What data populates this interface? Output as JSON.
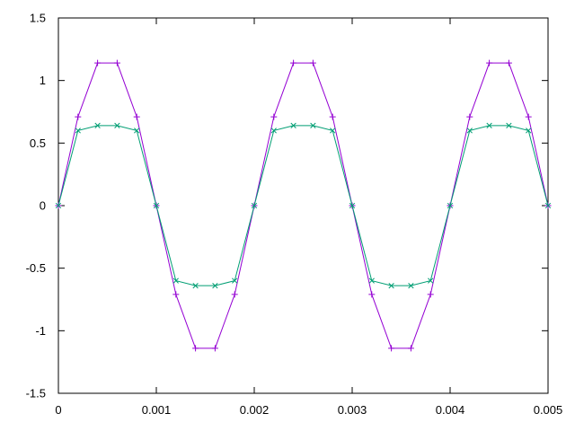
{
  "chart_data": {
    "type": "line",
    "title": "",
    "xlabel": "",
    "ylabel": "",
    "xlim": [
      0,
      0.005
    ],
    "ylim": [
      -1.5,
      1.5
    ],
    "grid": false,
    "legend": "none",
    "x_ticks": [
      "0",
      "0.001",
      "0.002",
      "0.003",
      "0.004",
      "0.005"
    ],
    "y_ticks": [
      "-1.5",
      "-1",
      "-0.5",
      "0",
      "0.5",
      "1",
      "1.5"
    ],
    "x_tick_values": [
      0,
      0.001,
      0.002,
      0.003,
      0.004,
      0.005
    ],
    "y_tick_values": [
      -1.5,
      -1,
      -0.5,
      0,
      0.5,
      1,
      1.5
    ],
    "series": [
      {
        "color": "#9400d3",
        "marker": "plus",
        "x": [
          0,
          0.0002,
          0.0004,
          0.0006,
          0.0008,
          0.001,
          0.0012,
          0.0014,
          0.0016,
          0.0018,
          0.002,
          0.0022,
          0.0024,
          0.0026,
          0.0028,
          0.003,
          0.0032,
          0.0034,
          0.0036,
          0.0038,
          0.004,
          0.0042,
          0.0044,
          0.0046,
          0.0048,
          0.005
        ],
        "y": [
          0,
          0.71,
          1.14,
          1.14,
          0.71,
          0,
          -0.71,
          -1.14,
          -1.14,
          -0.71,
          0,
          0.71,
          1.14,
          1.14,
          0.71,
          0,
          -0.71,
          -1.14,
          -1.14,
          -0.71,
          0,
          0.71,
          1.14,
          1.14,
          0.71,
          0
        ]
      },
      {
        "color": "#009e73",
        "marker": "cross",
        "x": [
          0,
          0.0002,
          0.0004,
          0.0006,
          0.0008,
          0.001,
          0.0012,
          0.0014,
          0.0016,
          0.0018,
          0.002,
          0.0022,
          0.0024,
          0.0026,
          0.0028,
          0.003,
          0.0032,
          0.0034,
          0.0036,
          0.0038,
          0.004,
          0.0042,
          0.0044,
          0.0046,
          0.0048,
          0.005
        ],
        "y": [
          0,
          0.6,
          0.64,
          0.64,
          0.6,
          0,
          -0.6,
          -0.64,
          -0.64,
          -0.6,
          0,
          0.6,
          0.64,
          0.64,
          0.6,
          0,
          -0.6,
          -0.64,
          -0.64,
          -0.6,
          0,
          0.6,
          0.64,
          0.64,
          0.6,
          0
        ]
      }
    ]
  }
}
